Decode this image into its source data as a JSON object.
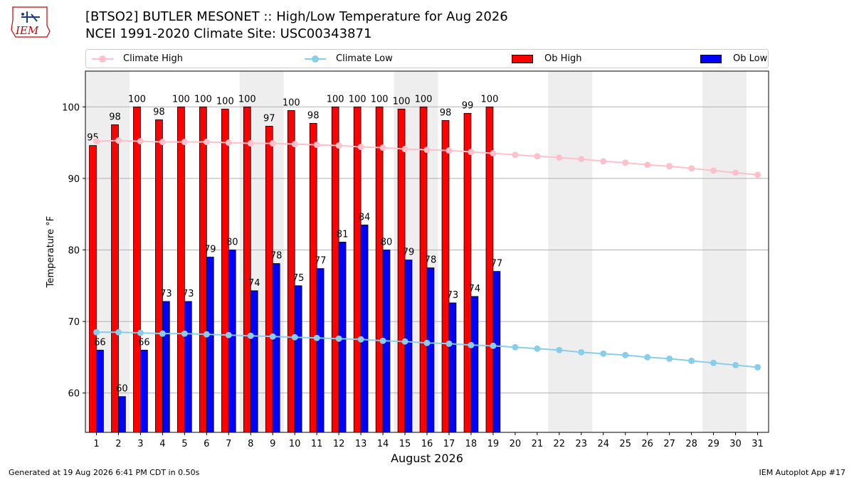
{
  "header": {
    "title_line1": "[BTSO2] BUTLER MESONET :: High/Low Temperature for Aug 2026",
    "title_line2": "NCEI 1991-2020 Climate Site: USC00343871",
    "logo_text": "IEM"
  },
  "footer": {
    "left": "Generated at 19 Aug 2026 6:41 PM CDT in 0.50s",
    "right": "IEM Autoplot App #17"
  },
  "legend": [
    {
      "label": "Climate High",
      "kind": "line",
      "color": "#ffc0cb"
    },
    {
      "label": "Climate Low",
      "kind": "line",
      "color": "#87ceeb"
    },
    {
      "label": "Ob High",
      "kind": "bar",
      "color": "#ff0000"
    },
    {
      "label": "Ob Low",
      "kind": "bar",
      "color": "#0000ff"
    }
  ],
  "chart_data": {
    "type": "bar",
    "xlabel": "August 2026",
    "ylabel": "Temperature °F",
    "ylim": [
      54.5,
      105
    ],
    "yticks": [
      60,
      70,
      80,
      90,
      100
    ],
    "grid": true,
    "legend_position": "top",
    "days": [
      1,
      2,
      3,
      4,
      5,
      6,
      7,
      8,
      9,
      10,
      11,
      12,
      13,
      14,
      15,
      16,
      17,
      18,
      19,
      20,
      21,
      22,
      23,
      24,
      25,
      26,
      27,
      28,
      29,
      30,
      31
    ],
    "shaded_day_ranges": [
      [
        1,
        2
      ],
      [
        8,
        9
      ],
      [
        15,
        16
      ],
      [
        22,
        23
      ],
      [
        29,
        30
      ]
    ],
    "series": [
      {
        "name": "Ob High",
        "color": "#ff0000",
        "values": [
          94.6,
          97.5,
          100.0,
          98.2,
          100.0,
          100.0,
          99.7,
          100.0,
          97.3,
          99.5,
          97.7,
          100.0,
          100.0,
          100.0,
          99.7,
          100.0,
          98.1,
          99.1,
          100.0
        ],
        "labels": [
          "95",
          "98",
          "100",
          "98",
          "100",
          "100",
          "100",
          "100",
          "97",
          "100",
          "98",
          "100",
          "100",
          "100",
          "100",
          "100",
          "98",
          "99",
          "100"
        ]
      },
      {
        "name": "Ob Low",
        "color": "#0000ff",
        "values": [
          66.0,
          59.5,
          66.0,
          72.8,
          72.8,
          79.0,
          80.0,
          74.3,
          78.1,
          75.0,
          77.4,
          81.1,
          83.5,
          80.0,
          78.6,
          77.5,
          72.6,
          73.5,
          77.0
        ],
        "labels": [
          "66",
          "60",
          "66",
          "73",
          "73",
          "79",
          "80",
          "74",
          "78",
          "75",
          "77",
          "81",
          "84",
          "80",
          "79",
          "78",
          "73",
          "74",
          "77"
        ]
      },
      {
        "name": "Climate High",
        "color": "#ffc0cb",
        "values": [
          95.2,
          95.3,
          95.2,
          95.1,
          95.1,
          95.1,
          95.0,
          94.9,
          94.9,
          94.8,
          94.7,
          94.6,
          94.4,
          94.3,
          94.1,
          94.0,
          93.9,
          93.7,
          93.5,
          93.3,
          93.1,
          92.9,
          92.7,
          92.4,
          92.2,
          91.9,
          91.7,
          91.4,
          91.1,
          90.8,
          90.5
        ]
      },
      {
        "name": "Climate Low",
        "color": "#87ceeb",
        "values": [
          68.5,
          68.5,
          68.4,
          68.3,
          68.3,
          68.2,
          68.1,
          68.0,
          67.9,
          67.8,
          67.7,
          67.6,
          67.5,
          67.3,
          67.2,
          67.0,
          66.9,
          66.7,
          66.6,
          66.4,
          66.2,
          66.0,
          65.7,
          65.5,
          65.3,
          65.0,
          64.8,
          64.5,
          64.2,
          63.9,
          63.6
        ]
      }
    ]
  }
}
